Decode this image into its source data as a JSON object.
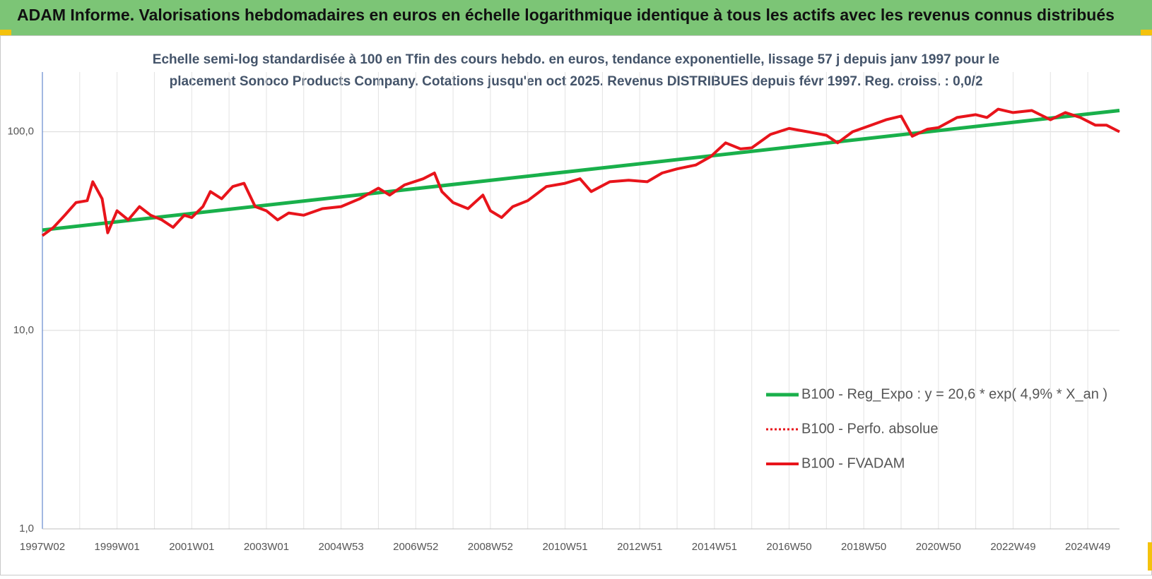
{
  "chart_data": {
    "type": "line",
    "header": "ADAM Informe. Valorisations hebdomadaires en euros en échelle logarithmique identique à tous les actifs avec les revenus connus distribués",
    "title": [
      "Echelle semi-log standardisée à 100 en Tfin des cours hebdo. en euros, tendance exponentielle, lissage 57 j depuis janv 1997 pour le",
      "placement Sonoco Products Company. Cotations jusqu'en oct 2025.  Revenus DISTRIBUES depuis févr 1997. Reg. croiss. : 0,0/2"
    ],
    "log_y": true,
    "grid": true,
    "legend": "lower right",
    "xlim": [
      1997.0,
      2025.85
    ],
    "xticks": [
      {
        "value": 1997.0,
        "label": "1997W02"
      },
      {
        "value": 1998.0,
        "label": null
      },
      {
        "value": 1999.0,
        "label": "1999W01"
      },
      {
        "value": 2000.0,
        "label": null
      },
      {
        "value": 2001.0,
        "label": "2001W01"
      },
      {
        "value": 2002.0,
        "label": null
      },
      {
        "value": 2003.0,
        "label": "2003W01"
      },
      {
        "value": 2004.0,
        "label": null
      },
      {
        "value": 2005.0,
        "label": "2004W53"
      },
      {
        "value": 2006.0,
        "label": null
      },
      {
        "value": 2007.0,
        "label": "2006W52"
      },
      {
        "value": 2008.0,
        "label": null
      },
      {
        "value": 2009.0,
        "label": "2008W52"
      },
      {
        "value": 2010.0,
        "label": null
      },
      {
        "value": 2011.0,
        "label": "2010W51"
      },
      {
        "value": 2012.0,
        "label": null
      },
      {
        "value": 2013.0,
        "label": "2012W51"
      },
      {
        "value": 2014.0,
        "label": null
      },
      {
        "value": 2015.0,
        "label": "2014W51"
      },
      {
        "value": 2016.0,
        "label": null
      },
      {
        "value": 2017.0,
        "label": "2016W50"
      },
      {
        "value": 2018.0,
        "label": null
      },
      {
        "value": 2019.0,
        "label": "2018W50"
      },
      {
        "value": 2020.0,
        "label": null
      },
      {
        "value": 2021.0,
        "label": "2020W50"
      },
      {
        "value": 2022.0,
        "label": null
      },
      {
        "value": 2023.0,
        "label": "2022W49"
      },
      {
        "value": 2024.0,
        "label": null
      },
      {
        "value": 2025.0,
        "label": "2024W49"
      }
    ],
    "ylim": [
      1,
      200
    ],
    "yticks": [
      {
        "value": 1,
        "label": "1,0"
      },
      {
        "value": 10,
        "label": "10,0"
      },
      {
        "value": 100,
        "label": "100,0"
      }
    ],
    "series": [
      {
        "name": "B100 - Reg_Expo : y = 20,6 * exp( 4,9% *  X_an )",
        "color": "#19b04b",
        "style": "solid",
        "width": 5,
        "x": [
          1997.0,
          2025.85
        ],
        "values": [
          32,
          128
        ]
      },
      {
        "name": "B100 - Perfo. absolue",
        "color": "#e8141b",
        "style": "dotted",
        "width": 3,
        "x": [
          1997.0,
          1997.3,
          1997.6,
          1997.9,
          1998.2,
          1998.35,
          1998.6,
          1998.75,
          1999.0,
          1999.3,
          1999.6,
          1999.9,
          2000.2,
          2000.5,
          2000.8,
          2001.0,
          2001.3,
          2001.5,
          2001.8,
          2002.1,
          2002.4,
          2002.7,
          2003.0,
          2003.3,
          2003.6,
          2004.0,
          2004.5,
          2005.0,
          2005.5,
          2006.0,
          2006.3,
          2006.7,
          2007.2,
          2007.5,
          2007.7,
          2008.0,
          2008.4,
          2008.8,
          2009.0,
          2009.3,
          2009.6,
          2010.0,
          2010.5,
          2011.0,
          2011.4,
          2011.7,
          2012.2,
          2012.7,
          2013.2,
          2013.6,
          2014.0,
          2014.5,
          2014.9,
          2015.3,
          2015.7,
          2016.0,
          2016.5,
          2017.0,
          2017.5,
          2018.0,
          2018.3,
          2018.7,
          2019.2,
          2019.6,
          2020.0,
          2020.3,
          2020.7,
          2021.0,
          2021.5,
          2022.0,
          2022.3,
          2022.6,
          2023.0,
          2023.5,
          2024.0,
          2024.4,
          2024.8,
          2025.2,
          2025.5,
          2025.85
        ],
        "values": [
          30,
          33,
          38,
          44,
          45,
          56,
          46,
          31,
          40,
          36,
          42,
          38,
          36,
          33,
          38,
          37,
          42,
          50,
          46,
          53,
          55,
          42,
          40,
          36,
          39,
          38,
          41,
          42,
          46,
          52,
          48,
          54,
          58,
          62,
          50,
          44,
          41,
          48,
          40,
          37,
          42,
          45,
          53,
          55,
          58,
          50,
          56,
          57,
          56,
          62,
          65,
          68,
          75,
          88,
          82,
          83,
          97,
          104,
          100,
          96,
          88,
          100,
          108,
          115,
          120,
          95,
          103,
          105,
          118,
          122,
          118,
          130,
          125,
          128,
          115,
          125,
          118,
          108,
          108,
          100
        ]
      },
      {
        "name": "B100 - FVADAM",
        "color": "#e8141b",
        "style": "solid",
        "width": 4,
        "x": [
          1997.0,
          1997.3,
          1997.6,
          1997.9,
          1998.2,
          1998.35,
          1998.6,
          1998.75,
          1999.0,
          1999.3,
          1999.6,
          1999.9,
          2000.2,
          2000.5,
          2000.8,
          2001.0,
          2001.3,
          2001.5,
          2001.8,
          2002.1,
          2002.4,
          2002.7,
          2003.0,
          2003.3,
          2003.6,
          2004.0,
          2004.5,
          2005.0,
          2005.5,
          2006.0,
          2006.3,
          2006.7,
          2007.2,
          2007.5,
          2007.7,
          2008.0,
          2008.4,
          2008.8,
          2009.0,
          2009.3,
          2009.6,
          2010.0,
          2010.5,
          2011.0,
          2011.4,
          2011.7,
          2012.2,
          2012.7,
          2013.2,
          2013.6,
          2014.0,
          2014.5,
          2014.9,
          2015.3,
          2015.7,
          2016.0,
          2016.5,
          2017.0,
          2017.5,
          2018.0,
          2018.3,
          2018.7,
          2019.2,
          2019.6,
          2020.0,
          2020.3,
          2020.7,
          2021.0,
          2021.5,
          2022.0,
          2022.3,
          2022.6,
          2023.0,
          2023.5,
          2024.0,
          2024.4,
          2024.8,
          2025.2,
          2025.5,
          2025.85
        ],
        "values": [
          30,
          33,
          38,
          44,
          45,
          56,
          46,
          31,
          40,
          36,
          42,
          38,
          36,
          33,
          38,
          37,
          42,
          50,
          46,
          53,
          55,
          42,
          40,
          36,
          39,
          38,
          41,
          42,
          46,
          52,
          48,
          54,
          58,
          62,
          50,
          44,
          41,
          48,
          40,
          37,
          42,
          45,
          53,
          55,
          58,
          50,
          56,
          57,
          56,
          62,
          65,
          68,
          75,
          88,
          82,
          83,
          97,
          104,
          100,
          96,
          88,
          100,
          108,
          115,
          120,
          95,
          103,
          105,
          118,
          122,
          118,
          130,
          125,
          128,
          115,
          125,
          118,
          108,
          108,
          100
        ]
      }
    ]
  }
}
